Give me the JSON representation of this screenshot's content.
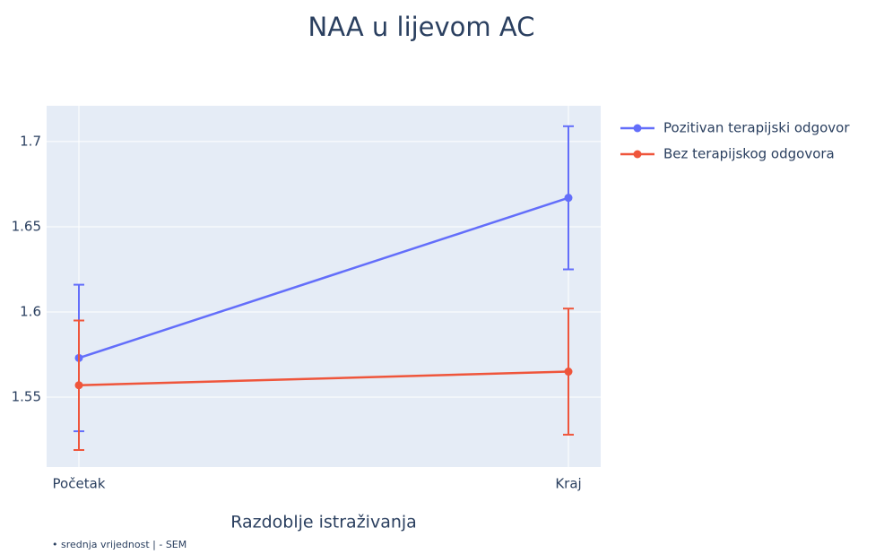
{
  "chart_data": {
    "type": "line",
    "title": "NAA u lijevom AC",
    "x_label": "Razdoblje istraživanja",
    "annotation": "• srednja vrijednost  |  - SEM",
    "categories": [
      "Početak",
      "Kraj"
    ],
    "series": [
      {
        "name": "Pozitivan terapijski odgovor",
        "color": "#636efa",
        "values": [
          1.573,
          1.667
        ],
        "errors": [
          0.043,
          0.042
        ]
      },
      {
        "name": "Bez terapijskog odgovora",
        "color": "#ef553b",
        "values": [
          1.557,
          1.565
        ],
        "errors": [
          0.038,
          0.037
        ]
      }
    ],
    "ylim": [
      1.509,
      1.721
    ],
    "yticks": [
      1.55,
      1.6,
      1.65,
      1.7
    ],
    "grid": true,
    "legend": "right"
  }
}
